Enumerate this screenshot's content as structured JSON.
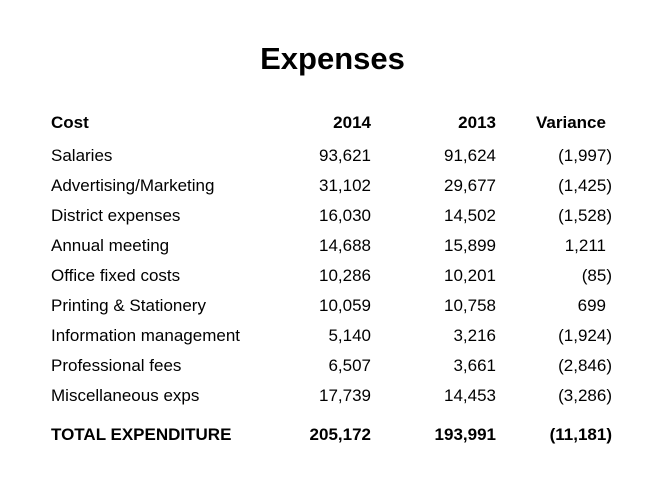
{
  "slide": {
    "title": "Expenses",
    "columns": [
      "Cost",
      "2014",
      "2013",
      "Variance"
    ],
    "rows": [
      {
        "cost": "Salaries",
        "y2014": "93,621",
        "y2013": "91,624",
        "variance": "(1,997)"
      },
      {
        "cost": "Advertising/Marketing",
        "y2014": "31,102",
        "y2013": "29,677",
        "variance": "(1,425)"
      },
      {
        "cost": "District expenses",
        "y2014": "16,030",
        "y2013": "14,502",
        "variance": "(1,528)"
      },
      {
        "cost": "Annual meeting",
        "y2014": "14,688",
        "y2013": "15,899",
        "variance": "1,211"
      },
      {
        "cost": "Office fixed costs",
        "y2014": "10,286",
        "y2013": "10,201",
        "variance": "(85)"
      },
      {
        "cost": "Printing & Stationery",
        "y2014": "10,059",
        "y2013": "10,758",
        "variance": "699"
      },
      {
        "cost": "Information management",
        "y2014": "5,140",
        "y2013": "3,216",
        "variance": "(1,924)"
      },
      {
        "cost": "Professional fees",
        "y2014": "6,507",
        "y2013": "3,661",
        "variance": "(2,846)"
      },
      {
        "cost": "Miscellaneous exps",
        "y2014": "17,739",
        "y2013": "14,453",
        "variance": "(3,286)"
      }
    ],
    "total": {
      "cost": "TOTAL EXPENDITURE",
      "y2014": "205,172",
      "y2013": "193,991",
      "variance": "(11,181)"
    }
  }
}
